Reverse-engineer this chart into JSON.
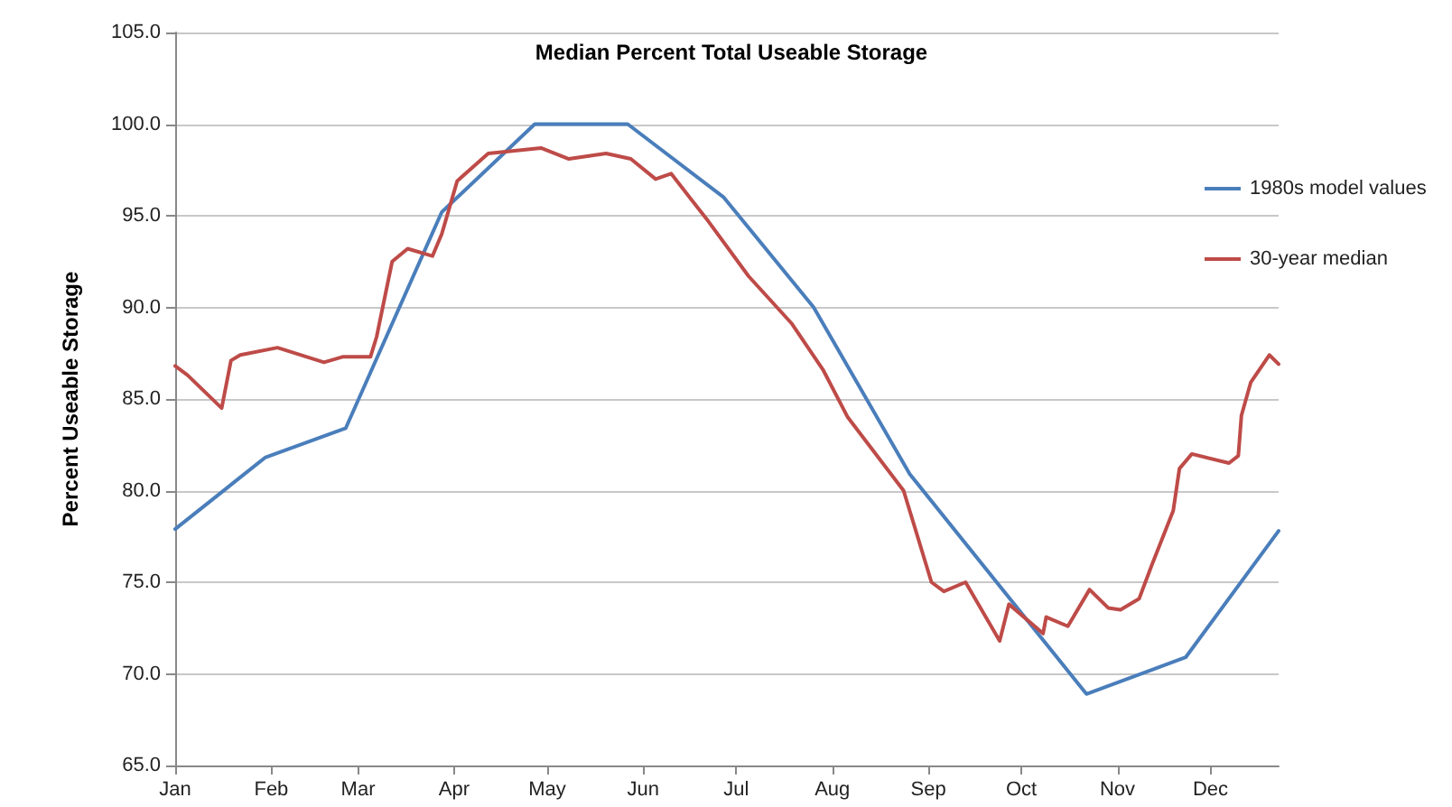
{
  "chart_data": {
    "type": "line",
    "title": "Median Percent Total Useable Storage",
    "ylabel": "Percent Useable Storage",
    "xlim": [
      "--01-01",
      "--12-23"
    ],
    "xticks": [
      {
        "value": "--01-01",
        "label": "Jan"
      },
      {
        "value": "--02-01",
        "label": "Feb"
      },
      {
        "value": "--03-01",
        "label": "Mar"
      },
      {
        "value": "--04-01",
        "label": "Apr"
      },
      {
        "value": "--05-01",
        "label": "May"
      },
      {
        "value": "--06-01",
        "label": "Jun"
      },
      {
        "value": "--07-01",
        "label": "Jul"
      },
      {
        "value": "--08-01",
        "label": "Aug"
      },
      {
        "value": "--09-01",
        "label": "Sep"
      },
      {
        "value": "--10-01",
        "label": "Oct"
      },
      {
        "value": "--11-01",
        "label": "Nov"
      },
      {
        "value": "--12-01",
        "label": "Dec"
      }
    ],
    "ylim": [
      65,
      105
    ],
    "yticks": [
      {
        "value": 65,
        "label": "65.0"
      },
      {
        "value": 70,
        "label": "70.0"
      },
      {
        "value": 75,
        "label": "75.0"
      },
      {
        "value": 80,
        "label": "80.0"
      },
      {
        "value": 85,
        "label": "85.0"
      },
      {
        "value": 90,
        "label": "90.0"
      },
      {
        "value": 95,
        "label": "95.0"
      },
      {
        "value": 100,
        "label": "100.0"
      },
      {
        "value": 105,
        "label": "105.0"
      }
    ],
    "grid": "y",
    "legend": "right",
    "marker": "none",
    "line_style": "solid",
    "series": [
      {
        "name": "1980s model values",
        "color": "#4a7ebb",
        "x": [
          "--01-01",
          "--01-30",
          "--02-25",
          "--03-28",
          "--04-27",
          "--05-27",
          "--06-27",
          "--07-26",
          "--08-26",
          "--10-22",
          "--11-23",
          "--12-23"
        ],
        "values": [
          77.9,
          81.8,
          83.4,
          95.2,
          100,
          100,
          96.0,
          90.0,
          80.9,
          68.9,
          70.9,
          77.8
        ]
      },
      {
        "name": "30-year median",
        "color": "#be4b48",
        "x": [
          "--01-01",
          "--01-05",
          "--01-16",
          "--01-19",
          "--01-22",
          "--02-03",
          "--02-18",
          "--02-24",
          "--03-05",
          "--03-07",
          "--03-12",
          "--03-17",
          "--03-25",
          "--03-28",
          "--04-02",
          "--04-12",
          "--04-29",
          "--05-08",
          "--05-20",
          "--05-28",
          "--06-05",
          "--06-10",
          "--06-22",
          "--07-05",
          "--07-19",
          "--07-29",
          "--08-06",
          "--08-24",
          "--09-02",
          "--09-06",
          "--09-13",
          "--09-24",
          "--09-27",
          "--10-08",
          "--10-09",
          "--10-16",
          "--10-23",
          "--10-29",
          "--11-02",
          "--11-08",
          "--11-12",
          "--11-19",
          "--11-21",
          "--11-25",
          "--12-07",
          "--12-10",
          "--12-11",
          "--12-14",
          "--12-20",
          "--12-23"
        ],
        "values": [
          86.8,
          86.3,
          84.5,
          87.1,
          87.4,
          87.8,
          87.0,
          87.3,
          87.3,
          88.4,
          92.5,
          93.2,
          92.8,
          94.0,
          96.9,
          98.4,
          98.7,
          98.1,
          98.4,
          98.1,
          97.0,
          97.3,
          94.7,
          91.7,
          89.1,
          86.6,
          84.0,
          80.0,
          75.0,
          74.5,
          75.0,
          71.8,
          73.8,
          72.2,
          73.1,
          72.6,
          74.6,
          73.6,
          73.5,
          74.1,
          75.9,
          78.9,
          81.2,
          82.0,
          81.5,
          81.9,
          84.1,
          85.9,
          87.4,
          86.9
        ]
      }
    ]
  }
}
